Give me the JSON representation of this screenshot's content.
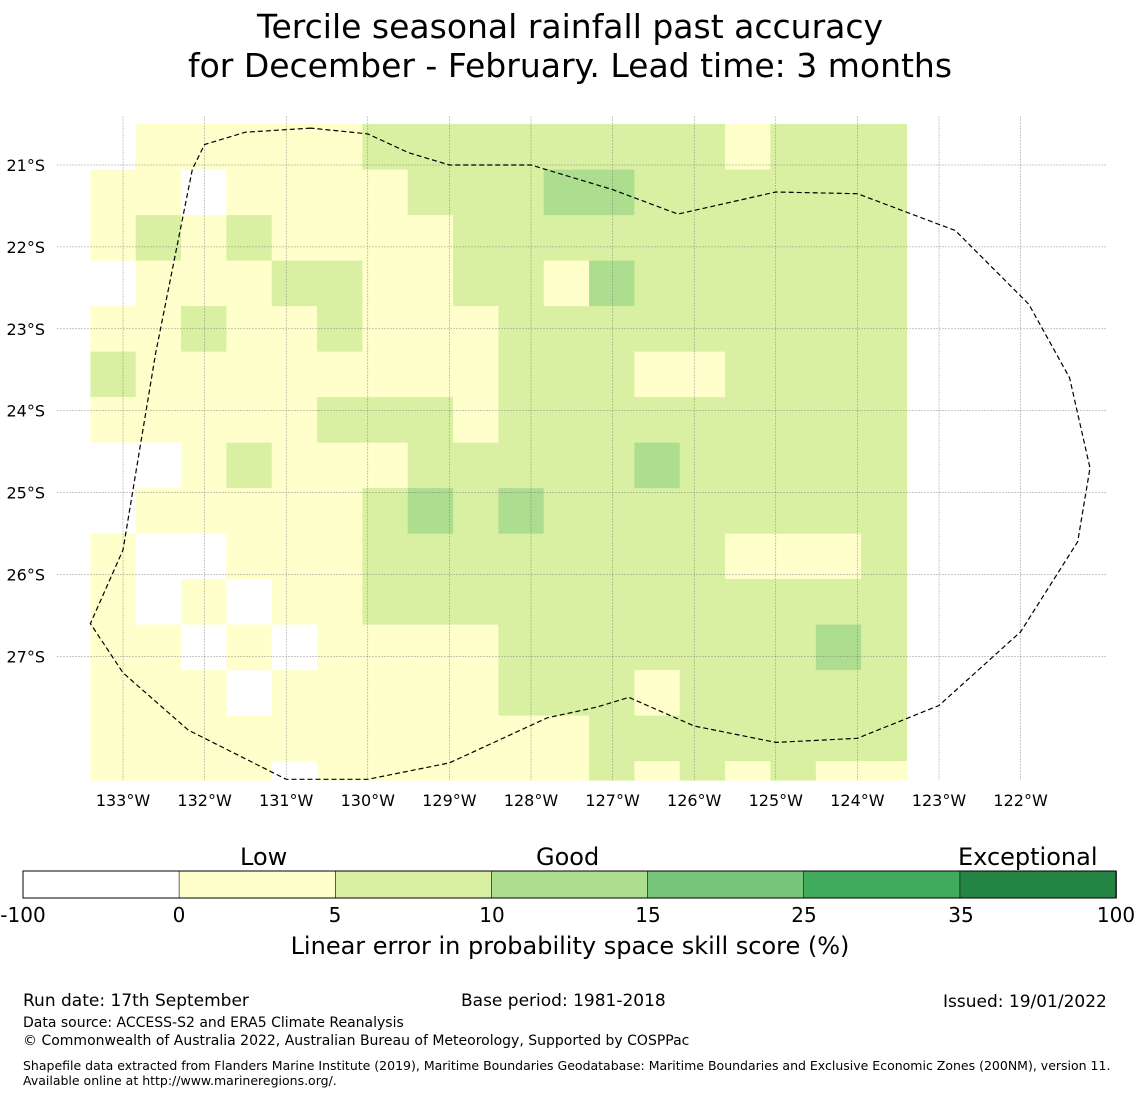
{
  "title": {
    "line1": "Tercile seasonal rainfall past accuracy",
    "line2": "for December - February. Lead time: 3 months"
  },
  "map": {
    "lon_labels": [
      "133°W",
      "132°W",
      "131°W",
      "130°W",
      "129°W",
      "128°W",
      "127°W",
      "126°W",
      "125°W",
      "124°W",
      "123°W",
      "122°W"
    ],
    "lon_values": [
      -133,
      -132,
      -131,
      -130,
      -129,
      -128,
      -127,
      -126,
      -125,
      -124,
      -123,
      -122
    ],
    "lat_labels": [
      "21°S",
      "22°S",
      "23°S",
      "24°S",
      "25°S",
      "26°S",
      "27°S"
    ],
    "lat_values": [
      -21,
      -22,
      -23,
      -24,
      -25,
      -26,
      -27
    ],
    "extent": {
      "lon_min": -133.8,
      "lon_max": -120.9,
      "lat_min": -28.5,
      "lat_max": -20.4
    },
    "grid_cells": {
      "lon_start": -133.4,
      "lat_start": -20.5,
      "step": 0.5556,
      "cols": 18,
      "rows": 15,
      "categories": [
        "0",
        "1",
        "1",
        "1",
        "1",
        "1",
        "2",
        "2",
        "2",
        "2",
        "2",
        "2",
        "2",
        "2",
        "1",
        "2",
        "2",
        "2",
        "1",
        "1",
        "0",
        "1",
        "1",
        "1",
        "1",
        "2",
        "2",
        "2",
        "3",
        "3",
        "2",
        "2",
        "2",
        "2",
        "2",
        "2",
        "1",
        "2",
        "1",
        "2",
        "1",
        "1",
        "1",
        "1",
        "2",
        "2",
        "2",
        "2",
        "2",
        "2",
        "2",
        "2",
        "2",
        "2",
        "0",
        "1",
        "1",
        "1",
        "2",
        "2",
        "1",
        "1",
        "2",
        "2",
        "1",
        "3",
        "2",
        "2",
        "2",
        "2",
        "2",
        "2",
        "1",
        "1",
        "2",
        "1",
        "1",
        "2",
        "1",
        "1",
        "1",
        "2",
        "2",
        "2",
        "2",
        "2",
        "2",
        "2",
        "2",
        "2",
        "2",
        "1",
        "1",
        "1",
        "1",
        "1",
        "1",
        "1",
        "1",
        "2",
        "2",
        "2",
        "1",
        "1",
        "2",
        "2",
        "2",
        "2",
        "1",
        "1",
        "1",
        "1",
        "1",
        "2",
        "2",
        "2",
        "1",
        "2",
        "2",
        "2",
        "2",
        "2",
        "2",
        "2",
        "2",
        "2",
        "0",
        "0",
        "1",
        "2",
        "1",
        "1",
        "1",
        "2",
        "2",
        "2",
        "2",
        "2",
        "3",
        "2",
        "2",
        "2",
        "2",
        "2",
        "0",
        "1",
        "1",
        "1",
        "1",
        "1",
        "2",
        "3",
        "2",
        "3",
        "2",
        "2",
        "2",
        "2",
        "2",
        "2",
        "2",
        "2",
        "1",
        "0",
        "0",
        "1",
        "1",
        "1",
        "2",
        "2",
        "2",
        "2",
        "2",
        "2",
        "2",
        "2",
        "1",
        "1",
        "1",
        "2",
        "1",
        "0",
        "1",
        "0",
        "1",
        "1",
        "2",
        "2",
        "2",
        "2",
        "2",
        "2",
        "2",
        "2",
        "2",
        "2",
        "2",
        "2",
        "1",
        "1",
        "0",
        "1",
        "0",
        "1",
        "1",
        "1",
        "1",
        "2",
        "2",
        "2",
        "2",
        "2",
        "2",
        "2",
        "3",
        "2",
        "1",
        "1",
        "1",
        "0",
        "1",
        "1",
        "1",
        "1",
        "1",
        "2",
        "2",
        "2",
        "1",
        "2",
        "2",
        "2",
        "2",
        "2",
        "1",
        "1",
        "1",
        "1",
        "1",
        "1",
        "1",
        "1",
        "1",
        "1",
        "1",
        "2",
        "2",
        "2",
        "2",
        "2",
        "2",
        "2",
        "1",
        "1",
        "1",
        "1",
        "0",
        "1",
        "1",
        "1",
        "1",
        "1",
        "1",
        "2",
        "1",
        "2",
        "1",
        "2",
        "1",
        "1"
      ]
    },
    "eez_boundary": [
      [
        -130.7,
        -20.55
      ],
      [
        -131.5,
        -20.6
      ],
      [
        -132.0,
        -20.75
      ],
      [
        -132.15,
        -21.05
      ],
      [
        -132.6,
        -23.3
      ],
      [
        -133.0,
        -25.7
      ],
      [
        -133.4,
        -26.6
      ],
      [
        -133.0,
        -27.2
      ],
      [
        -132.2,
        -27.9
      ],
      [
        -131.0,
        -28.5
      ],
      [
        -130.0,
        -28.5
      ],
      [
        -129.0,
        -28.3
      ],
      [
        -127.8,
        -27.75
      ],
      [
        -127.2,
        -27.62
      ],
      [
        -126.8,
        -27.5
      ],
      [
        -126.0,
        -27.85
      ],
      [
        -125.0,
        -28.05
      ],
      [
        -124.0,
        -28.0
      ],
      [
        -123.0,
        -27.6
      ],
      [
        -122.0,
        -26.7
      ],
      [
        -121.3,
        -25.6
      ],
      [
        -121.15,
        -24.7
      ],
      [
        -121.4,
        -23.6
      ],
      [
        -121.9,
        -22.7
      ],
      [
        -122.8,
        -21.8
      ],
      [
        -124.0,
        -21.35
      ],
      [
        -125.0,
        -21.33
      ],
      [
        -126.2,
        -21.6
      ],
      [
        -127.0,
        -21.3
      ],
      [
        -128.0,
        -21.0
      ],
      [
        -129.0,
        -21.0
      ],
      [
        -129.5,
        -20.85
      ],
      [
        -130.0,
        -20.62
      ],
      [
        -130.7,
        -20.55
      ]
    ]
  },
  "colorbar": {
    "word_low": "Low",
    "word_good": "Good",
    "word_exceptional": "Exceptional",
    "ticks": [
      "-100",
      "0",
      "5",
      "10",
      "15",
      "25",
      "35",
      "100"
    ],
    "colors": [
      "#ffffff",
      "#ffffcc",
      "#d9f0a3",
      "#addd8e",
      "#78c679",
      "#41ab5d",
      "#238443"
    ],
    "label": "Linear error in probability space skill score (%)"
  },
  "footer": {
    "run_date": "Run date: 17th September",
    "base_period": "Base period: 1981-2018",
    "issued": "Issued: 19/01/2022",
    "data_source": "Data source: ACCESS-S2 and ERA5 Climate Reanalysis",
    "copyright": "© Commonwealth of Australia 2022, Australian Bureau of Meteorology, Supported by COSPPac",
    "shapefile": "Shapefile data extracted from Flanders Marine Institute (2019), Maritime Boundaries Geodatabase: Maritime Boundaries and Exclusive Economic Zones (200NM), version 11. Available online at http://www.marineregions.org/."
  }
}
